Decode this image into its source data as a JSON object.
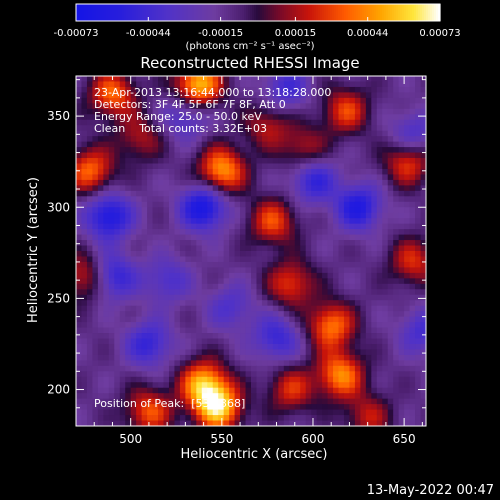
{
  "chart_data": {
    "type": "heatmap",
    "title": "Reconstructed RHESSI Image",
    "xlabel": "Heliocentric X (arcsec)",
    "ylabel": "Heliocentric Y (arcsec)",
    "xlim": [
      470,
      662
    ],
    "ylim": [
      180,
      372
    ],
    "x_ticks": [
      500,
      550,
      600,
      650
    ],
    "y_ticks": [
      200,
      250,
      300,
      350
    ],
    "colormap": "hot-metal with blue negative (blue → purple → red → orange → yellow → white)",
    "colorbar": {
      "position": "top",
      "range": [
        -0.00073,
        0.00073
      ],
      "ticks": [
        "-0.00073",
        "-0.00044",
        "-0.00015",
        "0.00015",
        "0.00044",
        "0.00073"
      ],
      "units_label": "(photons cm⁻² s⁻¹ asec⁻²)"
    },
    "annotations": {
      "time_range": "23-Apr-2013 13:16:44.000 to 13:18:28.000",
      "detectors": "Detectors: 3F 4F 5F 6F 7F 8F, Att 0",
      "energy_range": "Energy Range: 25.0 - 50.0 keV",
      "clean_counts": "Clean    Total counts: 3.32E+03",
      "peak_position": "Position of Peak:  [539,368]"
    },
    "peak": {
      "x": 539,
      "y": 368
    },
    "hot_spots": [
      {
        "x": 548,
        "y": 190,
        "v": 0.0007
      },
      {
        "x": 540,
        "y": 203,
        "v": 0.00062
      },
      {
        "x": 537,
        "y": 367,
        "v": 0.00068
      },
      {
        "x": 550,
        "y": 320,
        "v": 0.0006
      },
      {
        "x": 490,
        "y": 362,
        "v": 0.00048
      },
      {
        "x": 478,
        "y": 320,
        "v": 0.00048
      },
      {
        "x": 510,
        "y": 188,
        "v": 0.00044
      },
      {
        "x": 610,
        "y": 235,
        "v": 0.00052
      },
      {
        "x": 615,
        "y": 208,
        "v": 0.00055
      },
      {
        "x": 652,
        "y": 325,
        "v": 0.00042
      },
      {
        "x": 588,
        "y": 258,
        "v": 0.0004
      },
      {
        "x": 578,
        "y": 292,
        "v": 0.00042
      },
      {
        "x": 475,
        "y": 262,
        "v": 0.00038
      },
      {
        "x": 618,
        "y": 353,
        "v": 0.0004
      },
      {
        "x": 588,
        "y": 200,
        "v": 0.00036
      },
      {
        "x": 655,
        "y": 270,
        "v": 0.00036
      },
      {
        "x": 575,
        "y": 345,
        "v": 0.0003
      },
      {
        "x": 505,
        "y": 338,
        "v": 0.00028
      },
      {
        "x": 595,
        "y": 332,
        "v": 0.0003
      },
      {
        "x": 630,
        "y": 185,
        "v": 0.0003
      }
    ],
    "cold_spots": [
      {
        "x": 488,
        "y": 295,
        "v": -0.00052
      },
      {
        "x": 540,
        "y": 300,
        "v": -0.00056
      },
      {
        "x": 490,
        "y": 262,
        "v": -0.00042
      },
      {
        "x": 625,
        "y": 300,
        "v": -0.00048
      },
      {
        "x": 600,
        "y": 315,
        "v": -0.0004
      },
      {
        "x": 510,
        "y": 225,
        "v": -0.00038
      },
      {
        "x": 580,
        "y": 228,
        "v": -0.00036
      },
      {
        "x": 530,
        "y": 350,
        "v": -0.0003
      },
      {
        "x": 655,
        "y": 340,
        "v": -0.0003
      },
      {
        "x": 585,
        "y": 365,
        "v": -0.00032
      },
      {
        "x": 660,
        "y": 232,
        "v": -0.0003
      },
      {
        "x": 520,
        "y": 260,
        "v": -0.00028
      },
      {
        "x": 555,
        "y": 245,
        "v": -0.00026
      }
    ]
  },
  "footer_date": "13-May-2022 00:47"
}
